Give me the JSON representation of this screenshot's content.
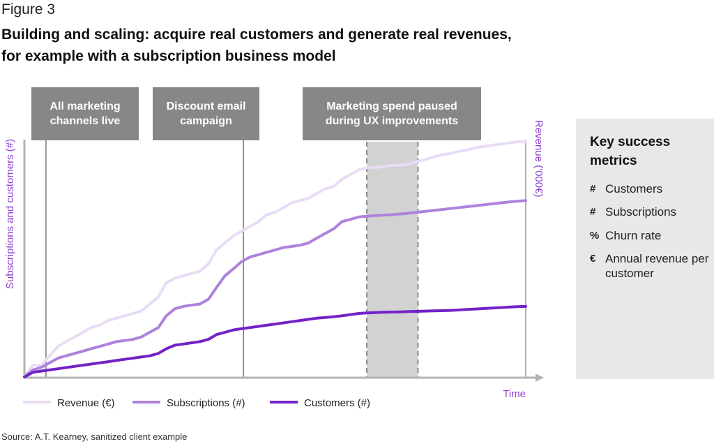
{
  "figure_label": "Figure 3",
  "title_line1": "Building and scaling: acquire real customers and generate real revenues,",
  "title_line2": "for example with a subscription business model",
  "source": "Source: A.T. Kearney, sanitized client example",
  "colors": {
    "revenue": "#e9dcf5",
    "subscriptions": "#ae82dc",
    "customers": "#7322c8",
    "axis_label": "#8b3fd1",
    "annotation_box": "#878787",
    "paused_band": "#d2d2d2"
  },
  "chart_data": {
    "type": "line",
    "title": "",
    "xlabel": "Time",
    "ylabel_left": "Subscriptions and customers (#)",
    "ylabel_right": "Revenue ('000€)",
    "xlim": [
      0,
      100
    ],
    "ylim": [
      0,
      100
    ],
    "grid": false,
    "legend_position": "bottom-left",
    "annotations": [
      {
        "lines": [
          "All marketing",
          "channels live"
        ],
        "x": 4.3
      },
      {
        "lines": [
          "Discount email",
          "campaign"
        ],
        "x": 43.7
      },
      {
        "lines": [
          "Marketing spend paused",
          "during UX improvements"
        ],
        "x_start": 68.3,
        "x_end": 78.5
      }
    ],
    "series": [
      {
        "name": "Revenue (€)",
        "x": [
          0,
          1.7,
          3.3,
          5.0,
          6.7,
          8.3,
          10,
          11.7,
          13.3,
          15,
          16.7,
          18.3,
          20,
          21.7,
          23.3,
          25,
          26.7,
          28.3,
          30,
          31.7,
          33.3,
          35,
          36.7,
          38.3,
          40,
          41.7,
          43.3,
          45,
          46.7,
          48.3,
          50,
          51.7,
          53.3,
          55,
          56.7,
          58.3,
          60,
          61.7,
          63.3,
          65,
          66.7,
          68.3,
          70,
          71.7,
          73.3,
          75,
          76.7,
          78.3,
          80,
          81.7,
          83.3,
          85,
          86.7,
          88.3,
          90,
          91.7,
          93.3,
          95,
          96.7,
          98.3,
          100
        ],
        "values": [
          0,
          5,
          5,
          9,
          13,
          15,
          17,
          19,
          21,
          22,
          24,
          25,
          26,
          27,
          28,
          31,
          34,
          40,
          42,
          43,
          44,
          45,
          48,
          54,
          57,
          60,
          62,
          64,
          66,
          69,
          70,
          72,
          74,
          75,
          76,
          78,
          80,
          81,
          84,
          86,
          88,
          89,
          89,
          89.5,
          90,
          90,
          90.5,
          91.5,
          92.5,
          93.5,
          94.5,
          95,
          96,
          96.5,
          97.5,
          98,
          98.5,
          99,
          99.5,
          100,
          100
        ]
      },
      {
        "name": "Subscriptions (#)",
        "x": [
          0,
          1.7,
          3.3,
          5.0,
          6.7,
          8.3,
          10,
          11.7,
          13.3,
          15,
          16.7,
          18.3,
          20,
          21.7,
          23.3,
          25,
          26.7,
          28.3,
          30,
          31.7,
          33.3,
          35,
          36.7,
          38.3,
          40,
          41.7,
          43.3,
          45,
          46.7,
          48.3,
          50,
          51.7,
          53.3,
          55,
          56.7,
          58.3,
          60,
          61.7,
          63.3,
          65,
          66.7,
          68.3,
          70,
          71.7,
          73.3,
          75,
          76.7,
          78.3,
          80,
          81.7,
          83.3,
          85,
          86.7,
          88.3,
          90,
          91.7,
          93.3,
          95,
          96.7,
          98.3,
          100
        ],
        "values": [
          0,
          3,
          4,
          6,
          8,
          9,
          10,
          11,
          12,
          13,
          14,
          15,
          15.5,
          16,
          17,
          19,
          21,
          26,
          29,
          30,
          30.5,
          31,
          33,
          38,
          43,
          46,
          49,
          51,
          52,
          53,
          54,
          55,
          55.5,
          56,
          57,
          59,
          61,
          63,
          66,
          67,
          68,
          68.3,
          68.6,
          68.8,
          69,
          69.3,
          69.6,
          70,
          70.4,
          70.8,
          71.2,
          71.6,
          72,
          72.4,
          72.8,
          73.2,
          73.6,
          74,
          74.4,
          74.7,
          75
        ]
      },
      {
        "name": "Customers (#)",
        "x": [
          0,
          1.7,
          3.3,
          5.0,
          6.7,
          8.3,
          10,
          11.7,
          13.3,
          15,
          16.7,
          18.3,
          20,
          21.7,
          23.3,
          25,
          26.7,
          28.3,
          30,
          31.7,
          33.3,
          35,
          36.7,
          38.3,
          40,
          41.7,
          43.3,
          45,
          46.7,
          48.3,
          50,
          51.7,
          53.3,
          55,
          56.7,
          58.3,
          60,
          61.7,
          63.3,
          65,
          66.7,
          68.3,
          70,
          71.7,
          73.3,
          75,
          76.7,
          78.3,
          80,
          81.7,
          83.3,
          85,
          86.7,
          88.3,
          90,
          91.7,
          93.3,
          95,
          96.7,
          98.3,
          100
        ],
        "values": [
          0,
          2,
          2.5,
          3,
          3.5,
          4,
          4.5,
          5,
          5.5,
          6,
          6.5,
          7,
          7.5,
          8,
          8.5,
          9,
          10,
          12,
          13.5,
          14,
          14.5,
          15,
          16,
          18,
          19,
          20,
          20.5,
          21,
          21.5,
          22,
          22.5,
          23,
          23.5,
          24,
          24.5,
          25,
          25.3,
          25.6,
          26,
          26.5,
          27,
          27.2,
          27.4,
          27.5,
          27.6,
          27.7,
          27.8,
          27.9,
          28,
          28.1,
          28.2,
          28.3,
          28.5,
          28.7,
          28.9,
          29.1,
          29.3,
          29.5,
          29.7,
          29.9,
          30
        ]
      }
    ]
  },
  "metrics": {
    "title": "Key success metrics",
    "items": [
      {
        "symbol": "#",
        "label": "Customers"
      },
      {
        "symbol": "#",
        "label": "Subscriptions"
      },
      {
        "symbol": "%",
        "label": "Churn rate"
      },
      {
        "symbol": "€",
        "label": "Annual revenue per customer"
      }
    ]
  }
}
